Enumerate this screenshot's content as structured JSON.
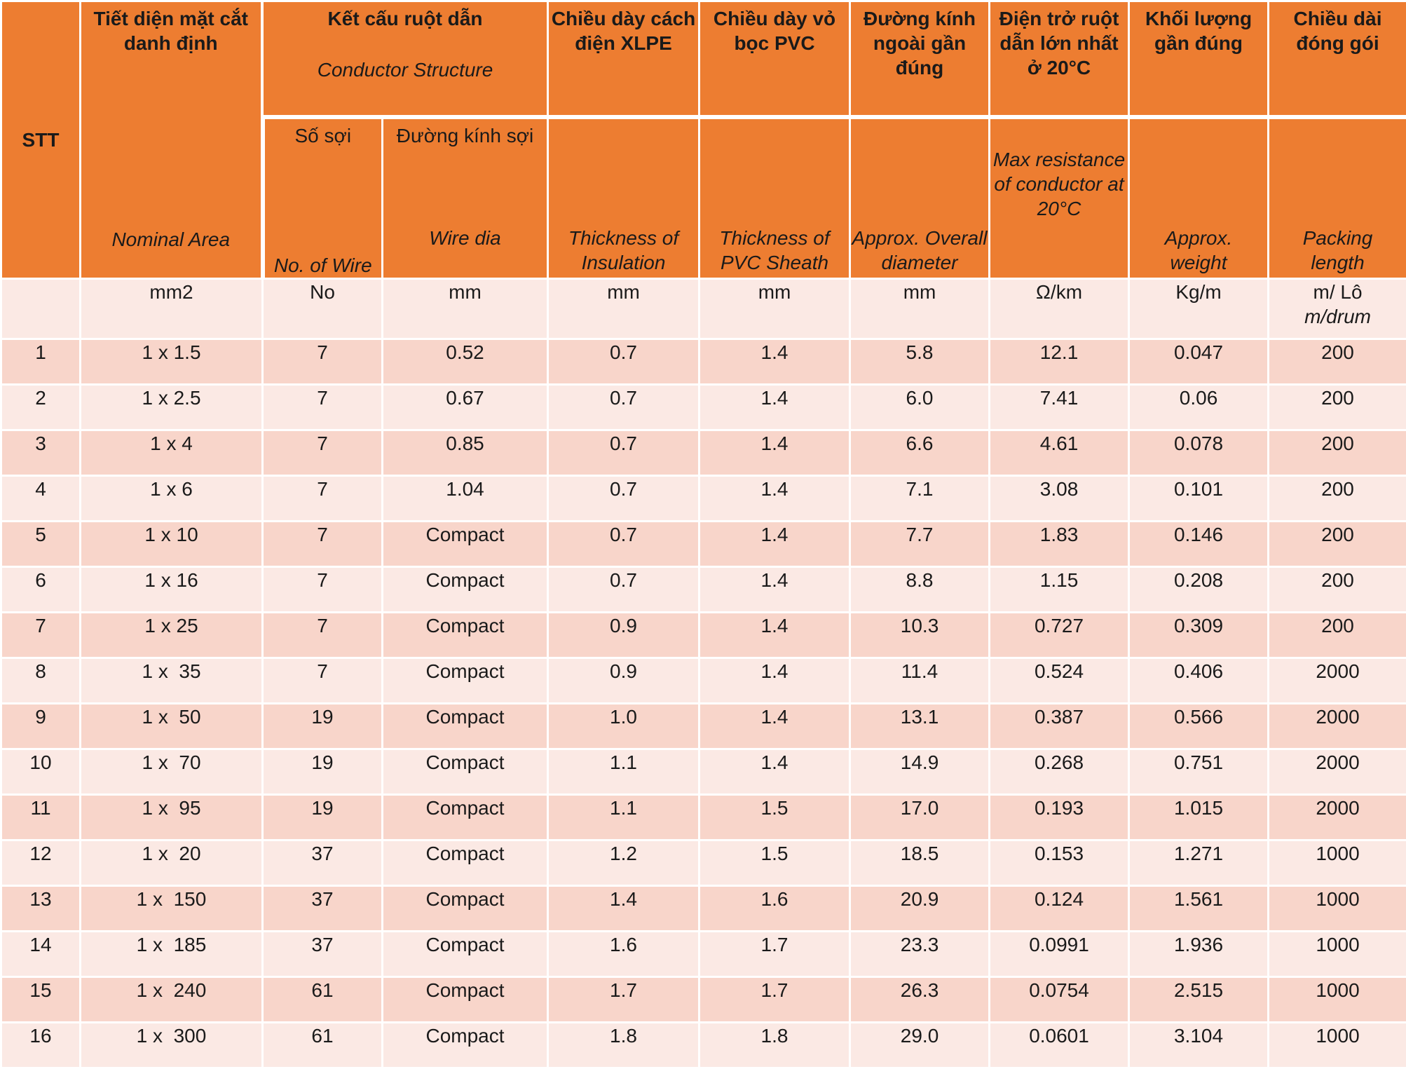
{
  "header": {
    "stt": "STT",
    "nominal_vi": "Tiết diện mặt cắt danh định",
    "nominal_en": "Nominal Area",
    "conductor_vi": "Kết cấu ruột dẫn",
    "conductor_en": "Conductor Structure",
    "wires_vi": "Số sợi",
    "wires_en": "No. of Wire",
    "wiredia_vi": "Đường kính sợi",
    "wiredia_en": "Wire dia",
    "insulation_vi": "Chiều dày cách điện XLPE",
    "insulation_en": "Thickness of Insulation",
    "sheath_vi": "Chiều dày vỏ bọc PVC",
    "sheath_en": "Thickness of PVC Sheath",
    "diameter_vi": "Đường kính ngoài gần đúng",
    "diameter_en": "Approx. Overall diameter",
    "resistance_vi": "Điện trở ruột dẫn lớn nhất ở 20°C",
    "resistance_en": "Max resistance of conductor at 20°C",
    "weight_vi": "Khối lượng gần đúng",
    "weight_en": "Approx. weight",
    "length_vi": "Chiều dài đóng gói",
    "length_en": "Packing length"
  },
  "units": {
    "stt": "",
    "area": "mm2",
    "wires": "No",
    "wiredia": "mm",
    "insulation": "mm",
    "sheath": "mm",
    "diameter": "mm",
    "resistance": "Ω/km",
    "weight": "Kg/m",
    "length": "m/ Lô",
    "length_en": "m/drum"
  },
  "rows": [
    [
      "1",
      "1 x 1.5",
      "7",
      "0.52",
      "0.7",
      "1.4",
      "5.8",
      "12.1",
      "0.047",
      "200"
    ],
    [
      "2",
      "1 x 2.5",
      "7",
      "0.67",
      "0.7",
      "1.4",
      "6.0",
      "7.41",
      "0.06",
      "200"
    ],
    [
      "3",
      "1 x 4",
      "7",
      "0.85",
      "0.7",
      "1.4",
      "6.6",
      "4.61",
      "0.078",
      "200"
    ],
    [
      "4",
      "1 x 6",
      "7",
      "1.04",
      "0.7",
      "1.4",
      "7.1",
      "3.08",
      "0.101",
      "200"
    ],
    [
      "5",
      "1 x 10",
      "7",
      "Compact",
      "0.7",
      "1.4",
      "7.7",
      "1.83",
      "0.146",
      "200"
    ],
    [
      "6",
      "1 x 16",
      "7",
      "Compact",
      "0.7",
      "1.4",
      "8.8",
      "1.15",
      "0.208",
      "200"
    ],
    [
      "7",
      "1 x 25",
      "7",
      "Compact",
      "0.9",
      "1.4",
      "10.3",
      "0.727",
      "0.309",
      "200"
    ],
    [
      "8",
      "1 x  35",
      "7",
      "Compact",
      "0.9",
      "1.4",
      "11.4",
      "0.524",
      "0.406",
      "2000"
    ],
    [
      "9",
      "1 x  50",
      "19",
      "Compact",
      "1.0",
      "1.4",
      "13.1",
      "0.387",
      "0.566",
      "2000"
    ],
    [
      "10",
      "1 x  70",
      "19",
      "Compact",
      "1.1",
      "1.4",
      "14.9",
      "0.268",
      "0.751",
      "2000"
    ],
    [
      "11",
      "1 x  95",
      "19",
      "Compact",
      "1.1",
      "1.5",
      "17.0",
      "0.193",
      "1.015",
      "2000"
    ],
    [
      "12",
      "1 x  20",
      "37",
      "Compact",
      "1.2",
      "1.5",
      "18.5",
      "0.153",
      "1.271",
      "1000"
    ],
    [
      "13",
      "1 x  150",
      "37",
      "Compact",
      "1.4",
      "1.6",
      "20.9",
      "0.124",
      "1.561",
      "1000"
    ],
    [
      "14",
      "1 x  185",
      "37",
      "Compact",
      "1.6",
      "1.7",
      "23.3",
      "0.0991",
      "1.936",
      "1000"
    ],
    [
      "15",
      "1 x  240",
      "61",
      "Compact",
      "1.7",
      "1.7",
      "26.3",
      "0.0754",
      "2.515",
      "1000"
    ],
    [
      "16",
      "1 x  300",
      "61",
      "Compact",
      "1.8",
      "1.8",
      "29.0",
      "0.0601",
      "3.104",
      "1000"
    ]
  ]
}
